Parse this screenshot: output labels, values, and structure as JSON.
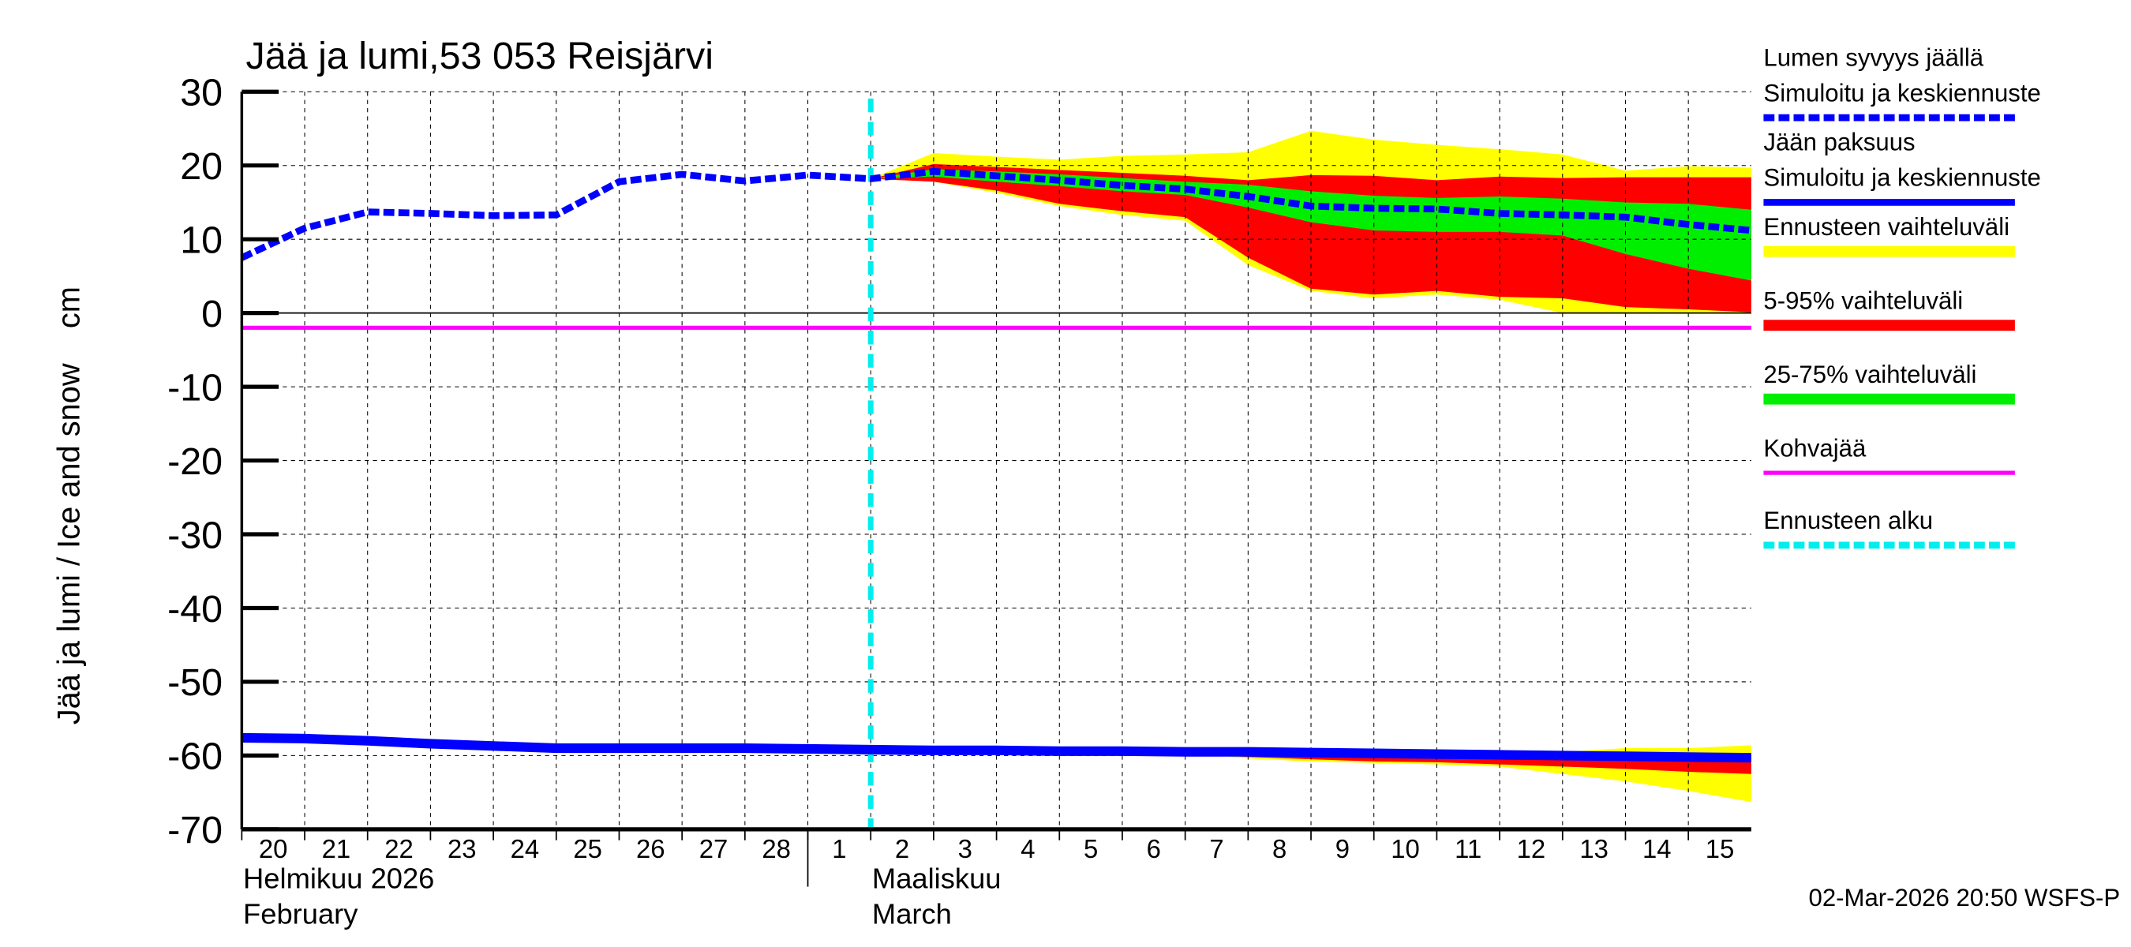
{
  "chart_data": {
    "type": "area",
    "title": "Jää ja lumi,53 053 Reisjärvi",
    "ylabel": "Jää ja lumi / Ice and snow    cm",
    "ylim": [
      -70,
      30
    ],
    "yticks": [
      30,
      20,
      10,
      0,
      -10,
      -20,
      -30,
      -40,
      -50,
      -60,
      -70
    ],
    "xlim": [
      "2026-02-20",
      "2026-03-16"
    ],
    "xtick_labels": [
      "20",
      "21",
      "22",
      "23",
      "24",
      "25",
      "26",
      "27",
      "28",
      "1",
      "2",
      "3",
      "4",
      "5",
      "6",
      "7",
      "8",
      "9",
      "10",
      "11",
      "12",
      "13",
      "14",
      "15"
    ],
    "month_labels": [
      {
        "fi": "Helmikuu  2026",
        "en": "February"
      },
      {
        "fi": "Maaliskuu",
        "en": "March"
      }
    ],
    "grid": true,
    "legend_placement": "right",
    "forecast_start": "2026-03-02",
    "kohvajaa_level": -2,
    "colors": {
      "snow": "#0000ff",
      "ice": "#0000ff",
      "range_full": "#ffff00",
      "range_5_95": "#ff0000",
      "range_25_75": "#00ee00",
      "kohvajaa": "#ff00ff",
      "forecast_start": "#00eeee"
    },
    "snow_depth": {
      "x": [
        "2026-02-20",
        "2026-02-21",
        "2026-02-22",
        "2026-02-23",
        "2026-02-24",
        "2026-02-25",
        "2026-02-26",
        "2026-02-27",
        "2026-02-28",
        "2026-03-01",
        "2026-03-02",
        "2026-03-03",
        "2026-03-04",
        "2026-03-05",
        "2026-03-06",
        "2026-03-07",
        "2026-03-08",
        "2026-03-09",
        "2026-03-10",
        "2026-03-11",
        "2026-03-12",
        "2026-03-13",
        "2026-03-14",
        "2026-03-15",
        "2026-03-16"
      ],
      "y": [
        7.5,
        11.5,
        13.7,
        13.5,
        13.2,
        13.3,
        17.8,
        18.8,
        17.9,
        18.7,
        18.2,
        19.2,
        18.6,
        18.0,
        17.3,
        16.8,
        15.8,
        14.5,
        14.2,
        14.1,
        13.5,
        13.3,
        13.0,
        12.0,
        11.2
      ]
    },
    "snow_bands": {
      "x": [
        "2026-03-02",
        "2026-03-03",
        "2026-03-04",
        "2026-03-05",
        "2026-03-06",
        "2026-03-07",
        "2026-03-08",
        "2026-03-09",
        "2026-03-10",
        "2026-03-11",
        "2026-03-12",
        "2026-03-13",
        "2026-03-14",
        "2026-03-15",
        "2026-03-16"
      ],
      "full_upper": [
        18.2,
        21.7,
        21.2,
        20.8,
        21.3,
        21.5,
        21.8,
        24.7,
        23.5,
        22.8,
        22.2,
        21.5,
        19.3,
        19.9,
        19.7
      ],
      "p95": [
        18.2,
        20.2,
        19.8,
        19.4,
        19.0,
        18.6,
        18.0,
        18.7,
        18.6,
        18.0,
        18.5,
        18.3,
        18.4,
        18.4,
        18.4
      ],
      "p75": [
        18.2,
        19.5,
        19.2,
        18.8,
        18.3,
        17.8,
        17.4,
        16.5,
        15.9,
        15.6,
        15.8,
        15.5,
        15.0,
        14.8,
        14.0
      ],
      "p25": [
        18.2,
        18.5,
        17.8,
        17.2,
        16.5,
        16.0,
        14.3,
        12.3,
        11.2,
        11.0,
        11.0,
        10.5,
        8.0,
        6.0,
        4.4
      ],
      "p5": [
        18.2,
        17.8,
        16.6,
        14.8,
        13.8,
        13.0,
        7.5,
        3.3,
        2.5,
        3.0,
        2.2,
        2.0,
        0.8,
        0.5,
        0.1
      ],
      "full_lower": [
        18.2,
        17.8,
        16.3,
        14.5,
        13.3,
        12.5,
        6.5,
        3.0,
        2.0,
        2.5,
        1.8,
        0.0,
        0.0,
        0.0,
        0.0
      ]
    },
    "ice_thickness": {
      "x": [
        "2026-02-20",
        "2026-02-21",
        "2026-02-22",
        "2026-02-23",
        "2026-02-24",
        "2026-02-25",
        "2026-02-26",
        "2026-02-27",
        "2026-02-28",
        "2026-03-01",
        "2026-03-02",
        "2026-03-03",
        "2026-03-04",
        "2026-03-05",
        "2026-03-06",
        "2026-03-07",
        "2026-03-08",
        "2026-03-09",
        "2026-03-10",
        "2026-03-11",
        "2026-03-12",
        "2026-03-13",
        "2026-03-14",
        "2026-03-15",
        "2026-03-16"
      ],
      "y": [
        -57.6,
        -57.7,
        -58.0,
        -58.4,
        -58.7,
        -59.0,
        -59.0,
        -59.0,
        -59.0,
        -59.1,
        -59.2,
        -59.3,
        -59.3,
        -59.4,
        -59.4,
        -59.5,
        -59.5,
        -59.6,
        -59.7,
        -59.8,
        -59.9,
        -60.0,
        -60.1,
        -60.2,
        -60.3
      ]
    },
    "ice_bands": {
      "x": [
        "2026-03-07",
        "2026-03-08",
        "2026-03-09",
        "2026-03-10",
        "2026-03-11",
        "2026-03-12",
        "2026-03-13",
        "2026-03-14",
        "2026-03-15",
        "2026-03-16"
      ],
      "full_upper": [
        -59.5,
        -59.5,
        -59.6,
        -59.7,
        -59.8,
        -59.9,
        -59.5,
        -59.0,
        -59.0,
        -58.6
      ],
      "p95": [
        -59.5,
        -59.5,
        -59.6,
        -59.7,
        -59.8,
        -59.9,
        -60.0,
        -60.1,
        -60.0,
        -59.9
      ],
      "p5": [
        -59.6,
        -60.2,
        -60.5,
        -60.8,
        -60.9,
        -61.2,
        -61.5,
        -61.8,
        -62.2,
        -62.5
      ],
      "full_lower": [
        -59.6,
        -60.4,
        -60.8,
        -61.0,
        -61.2,
        -61.5,
        -62.5,
        -63.5,
        -64.8,
        -66.3
      ]
    },
    "legend": [
      {
        "label": "Lumen syvyys jäällä",
        "label2": "Simuloitu ja keskiennuste",
        "style": "dashed",
        "color": "#0000ff"
      },
      {
        "label": "Jään paksuus",
        "label2": "Simuloitu ja keskiennuste",
        "style": "solid",
        "color": "#0000ff"
      },
      {
        "label": "Ennusteen vaihteluväli",
        "style": "band",
        "color": "#ffff00"
      },
      {
        "label": "5-95% vaihteluväli",
        "style": "band",
        "color": "#ff0000"
      },
      {
        "label": "25-75% vaihteluväli",
        "style": "band",
        "color": "#00ee00"
      },
      {
        "label": "Kohvajää",
        "style": "line",
        "color": "#ff00ff"
      },
      {
        "label": "Ennusteen alku",
        "style": "dashed",
        "color": "#00eeee"
      }
    ],
    "footer": "02-Mar-2026 20:50 WSFS-P"
  }
}
